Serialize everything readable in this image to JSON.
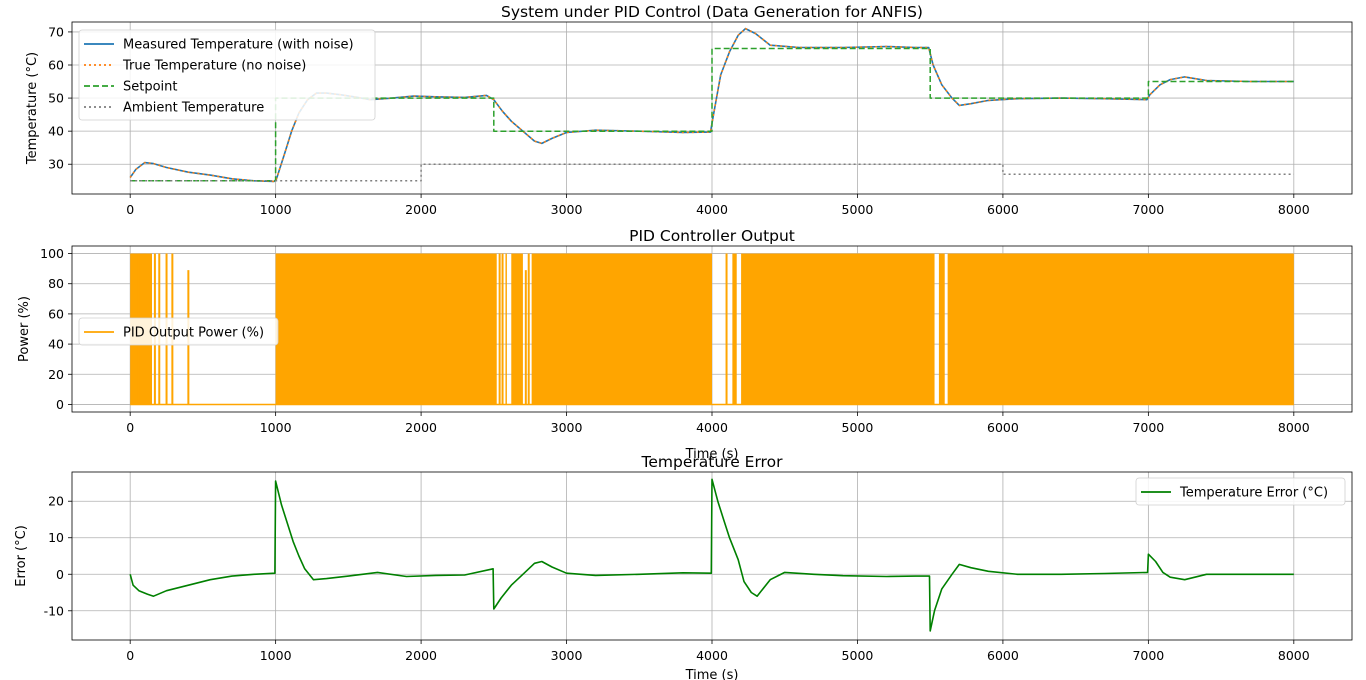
{
  "chart_data": [
    {
      "type": "line",
      "title": "System under PID Control (Data Generation for ANFIS)",
      "xlabel": "",
      "ylabel": "Temperature (°C)",
      "xlim": [
        -400,
        8400
      ],
      "ylim": [
        21,
        73
      ],
      "xticks": [
        0,
        1000,
        2000,
        3000,
        4000,
        5000,
        6000,
        7000,
        8000
      ],
      "yticks": [
        30,
        40,
        50,
        60,
        70
      ],
      "grid": true,
      "legend": "upper-left",
      "series": [
        {
          "name": "Measured Temperature (with noise)",
          "color": "#1f77b4",
          "style": "solid",
          "points": [
            [
              0,
              26
            ],
            [
              40,
              28.5
            ],
            [
              100,
              30.5
            ],
            [
              160,
              30.2
            ],
            [
              250,
              29
            ],
            [
              400,
              27.6
            ],
            [
              550,
              26.7
            ],
            [
              700,
              25.6
            ],
            [
              850,
              25
            ],
            [
              990,
              24.8
            ],
            [
              1005,
              25.5
            ],
            [
              1060,
              33
            ],
            [
              1110,
              40
            ],
            [
              1160,
              45.5
            ],
            [
              1220,
              49.5
            ],
            [
              1280,
              51.5
            ],
            [
              1350,
              51.5
            ],
            [
              1450,
              51
            ],
            [
              1550,
              50.3
            ],
            [
              1650,
              49.5
            ],
            [
              1800,
              50
            ],
            [
              1950,
              50.6
            ],
            [
              2100,
              50.4
            ],
            [
              2300,
              50.2
            ],
            [
              2450,
              50.8
            ],
            [
              2500,
              49.5
            ],
            [
              2560,
              46
            ],
            [
              2620,
              43
            ],
            [
              2700,
              40
            ],
            [
              2780,
              37
            ],
            [
              2830,
              36.3
            ],
            [
              2900,
              37.8
            ],
            [
              3000,
              39.6
            ],
            [
              3200,
              40.3
            ],
            [
              3500,
              40
            ],
            [
              3800,
              39.6
            ],
            [
              3990,
              39.7
            ],
            [
              4010,
              45
            ],
            [
              4060,
              57
            ],
            [
              4120,
              64
            ],
            [
              4180,
              69
            ],
            [
              4230,
              71
            ],
            [
              4300,
              69.5
            ],
            [
              4400,
              66
            ],
            [
              4600,
              65.3
            ],
            [
              4900,
              65.3
            ],
            [
              5200,
              65.6
            ],
            [
              5400,
              65.3
            ],
            [
              5490,
              65.3
            ],
            [
              5520,
              60
            ],
            [
              5580,
              54
            ],
            [
              5650,
              50
            ],
            [
              5700,
              47.8
            ],
            [
              5780,
              48.3
            ],
            [
              5900,
              49.3
            ],
            [
              6100,
              49.8
            ],
            [
              6400,
              50
            ],
            [
              6700,
              49.8
            ],
            [
              6990,
              49.5
            ],
            [
              7010,
              51
            ],
            [
              7080,
              54
            ],
            [
              7150,
              55.6
            ],
            [
              7250,
              56.4
            ],
            [
              7400,
              55.3
            ],
            [
              7700,
              55
            ],
            [
              8000,
              55
            ]
          ]
        },
        {
          "name": "True Temperature (no noise)",
          "color": "#ff7f0e",
          "style": "dotted",
          "points": [
            [
              0,
              26
            ],
            [
              40,
              28.5
            ],
            [
              100,
              30.5
            ],
            [
              160,
              30.2
            ],
            [
              250,
              29
            ],
            [
              400,
              27.6
            ],
            [
              550,
              26.7
            ],
            [
              700,
              25.6
            ],
            [
              850,
              25
            ],
            [
              990,
              24.8
            ],
            [
              1005,
              25.5
            ],
            [
              1060,
              33
            ],
            [
              1110,
              40
            ],
            [
              1160,
              45.5
            ],
            [
              1220,
              49.5
            ],
            [
              1280,
              51.5
            ],
            [
              1350,
              51.5
            ],
            [
              1450,
              51
            ],
            [
              1550,
              50.3
            ],
            [
              1650,
              49.5
            ],
            [
              1800,
              50
            ],
            [
              1950,
              50.6
            ],
            [
              2100,
              50.4
            ],
            [
              2300,
              50.2
            ],
            [
              2450,
              50.8
            ],
            [
              2500,
              49.5
            ],
            [
              2560,
              46
            ],
            [
              2620,
              43
            ],
            [
              2700,
              40
            ],
            [
              2780,
              37
            ],
            [
              2830,
              36.3
            ],
            [
              2900,
              37.8
            ],
            [
              3000,
              39.6
            ],
            [
              3200,
              40.3
            ],
            [
              3500,
              40
            ],
            [
              3800,
              39.6
            ],
            [
              3990,
              39.7
            ],
            [
              4010,
              45
            ],
            [
              4060,
              57
            ],
            [
              4120,
              64
            ],
            [
              4180,
              69
            ],
            [
              4230,
              71
            ],
            [
              4300,
              69.5
            ],
            [
              4400,
              66
            ],
            [
              4600,
              65.3
            ],
            [
              4900,
              65.3
            ],
            [
              5200,
              65.6
            ],
            [
              5400,
              65.3
            ],
            [
              5490,
              65.3
            ],
            [
              5520,
              60
            ],
            [
              5580,
              54
            ],
            [
              5650,
              50
            ],
            [
              5700,
              47.8
            ],
            [
              5780,
              48.3
            ],
            [
              5900,
              49.3
            ],
            [
              6100,
              49.8
            ],
            [
              6400,
              50
            ],
            [
              6700,
              49.8
            ],
            [
              6990,
              49.5
            ],
            [
              7010,
              51
            ],
            [
              7080,
              54
            ],
            [
              7150,
              55.6
            ],
            [
              7250,
              56.4
            ],
            [
              7400,
              55.3
            ],
            [
              7700,
              55
            ],
            [
              8000,
              55
            ]
          ]
        },
        {
          "name": "Setpoint",
          "color": "#2ca02c",
          "style": "dashed",
          "points": [
            [
              0,
              25
            ],
            [
              1000,
              25
            ],
            [
              1000,
              50
            ],
            [
              2500,
              50
            ],
            [
              2500,
              40
            ],
            [
              4000,
              40
            ],
            [
              4000,
              65
            ],
            [
              5500,
              65
            ],
            [
              5500,
              50
            ],
            [
              7000,
              50
            ],
            [
              7000,
              55
            ],
            [
              8000,
              55
            ]
          ]
        },
        {
          "name": "Ambient Temperature",
          "color": "#7f7f7f",
          "style": "dotted",
          "points": [
            [
              0,
              25
            ],
            [
              2000,
              25
            ],
            [
              2000,
              30
            ],
            [
              6000,
              30
            ],
            [
              6000,
              27
            ],
            [
              8000,
              27
            ]
          ]
        }
      ]
    },
    {
      "type": "area",
      "title": "PID Controller Output",
      "xlabel": "Time (s)",
      "ylabel": "Power (%)",
      "xlim": [
        -400,
        8400
      ],
      "ylim": [
        -5,
        105
      ],
      "xticks": [
        0,
        1000,
        2000,
        3000,
        4000,
        5000,
        6000,
        7000,
        8000
      ],
      "yticks": [
        0,
        20,
        40,
        60,
        80,
        100
      ],
      "grid": true,
      "legend": "center-left",
      "series": [
        {
          "name": "PID Output Power (%)",
          "color": "#ffa500",
          "min": 0,
          "bands": [
            [
              0,
              150
            ],
            [
              1000,
              2520
            ],
            [
              2580,
              2590
            ],
            [
              2620,
              2700
            ],
            [
              2760,
              4000
            ],
            [
              4140,
              4170
            ],
            [
              4200,
              5530
            ],
            [
              5560,
              5600
            ],
            [
              5620,
              8000
            ]
          ],
          "spikes": [
            [
              20,
              100
            ],
            [
              60,
              100
            ],
            [
              100,
              100
            ],
            [
              170,
              100
            ],
            [
              200,
              100
            ],
            [
              250,
              100
            ],
            [
              290,
              100
            ],
            [
              400,
              89
            ],
            [
              2540,
              100
            ],
            [
              2560,
              100
            ],
            [
              2720,
              89
            ],
            [
              2740,
              100
            ],
            [
              4100,
              100
            ]
          ]
        }
      ]
    },
    {
      "type": "line",
      "title": "Temperature Error",
      "xlabel": "Time (s)",
      "ylabel": "Error (°C)",
      "xlim": [
        -400,
        8400
      ],
      "ylim": [
        -18,
        28
      ],
      "xticks": [
        0,
        1000,
        2000,
        3000,
        4000,
        5000,
        6000,
        7000,
        8000
      ],
      "yticks": [
        -10,
        0,
        10,
        20
      ],
      "grid": true,
      "legend": "upper-right",
      "series": [
        {
          "name": "Temperature Error (°C)",
          "color": "#008000",
          "style": "solid",
          "points": [
            [
              0,
              0
            ],
            [
              20,
              -3
            ],
            [
              60,
              -4.5
            ],
            [
              120,
              -5.5
            ],
            [
              160,
              -6
            ],
            [
              250,
              -4.5
            ],
            [
              400,
              -3
            ],
            [
              550,
              -1.5
            ],
            [
              700,
              -0.5
            ],
            [
              850,
              0
            ],
            [
              995,
              0.3
            ],
            [
              1000,
              25.5
            ],
            [
              1040,
              19
            ],
            [
              1080,
              14
            ],
            [
              1120,
              9
            ],
            [
              1160,
              5
            ],
            [
              1200,
              1.5
            ],
            [
              1260,
              -1.5
            ],
            [
              1350,
              -1.2
            ],
            [
              1500,
              -0.5
            ],
            [
              1700,
              0.5
            ],
            [
              1900,
              -0.6
            ],
            [
              2100,
              -0.3
            ],
            [
              2300,
              -0.2
            ],
            [
              2495,
              1.5
            ],
            [
              2500,
              -9.5
            ],
            [
              2550,
              -6.5
            ],
            [
              2620,
              -3
            ],
            [
              2700,
              0
            ],
            [
              2780,
              3
            ],
            [
              2830,
              3.5
            ],
            [
              2900,
              2
            ],
            [
              3000,
              0.3
            ],
            [
              3200,
              -0.3
            ],
            [
              3500,
              0
            ],
            [
              3800,
              0.4
            ],
            [
              3995,
              0.3
            ],
            [
              4000,
              26
            ],
            [
              4040,
              20
            ],
            [
              4080,
              15
            ],
            [
              4120,
              10
            ],
            [
              4180,
              4
            ],
            [
              4220,
              -2
            ],
            [
              4270,
              -5
            ],
            [
              4310,
              -6
            ],
            [
              4400,
              -1.5
            ],
            [
              4500,
              0.5
            ],
            [
              4700,
              0
            ],
            [
              4900,
              -0.4
            ],
            [
              5200,
              -0.6
            ],
            [
              5400,
              -0.5
            ],
            [
              5495,
              -0.5
            ],
            [
              5500,
              -15.5
            ],
            [
              5530,
              -10
            ],
            [
              5580,
              -4
            ],
            [
              5650,
              0
            ],
            [
              5700,
              2.7
            ],
            [
              5780,
              1.8
            ],
            [
              5900,
              0.8
            ],
            [
              6100,
              0
            ],
            [
              6400,
              0
            ],
            [
              6700,
              0.2
            ],
            [
              6995,
              0.5
            ],
            [
              7000,
              5.5
            ],
            [
              7050,
              3.5
            ],
            [
              7100,
              0.5
            ],
            [
              7150,
              -0.8
            ],
            [
              7250,
              -1.5
            ],
            [
              7400,
              0
            ],
            [
              7700,
              0
            ],
            [
              8000,
              0
            ]
          ]
        }
      ]
    }
  ]
}
